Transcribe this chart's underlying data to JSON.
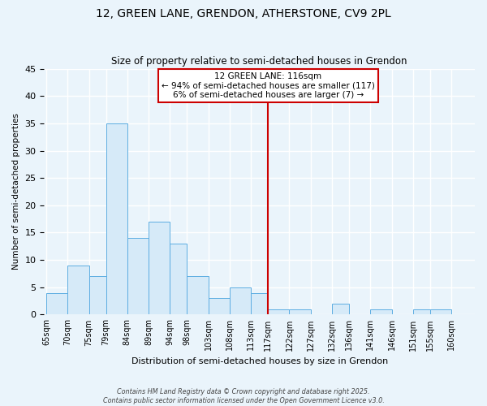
{
  "title": "12, GREEN LANE, GRENDON, ATHERSTONE, CV9 2PL",
  "subtitle": "Size of property relative to semi-detached houses in Grendon",
  "xlabel": "Distribution of semi-detached houses by size in Grendon",
  "ylabel": "Number of semi-detached properties",
  "bin_labels": [
    "65sqm",
    "70sqm",
    "75sqm",
    "79sqm",
    "84sqm",
    "89sqm",
    "94sqm",
    "98sqm",
    "103sqm",
    "108sqm",
    "113sqm",
    "117sqm",
    "122sqm",
    "127sqm",
    "132sqm",
    "136sqm",
    "141sqm",
    "146sqm",
    "151sqm",
    "155sqm",
    "160sqm"
  ],
  "bin_edges": [
    65,
    70,
    75,
    79,
    84,
    89,
    94,
    98,
    103,
    108,
    113,
    117,
    122,
    127,
    132,
    136,
    141,
    146,
    151,
    155,
    160
  ],
  "counts": [
    4,
    9,
    7,
    35,
    14,
    17,
    13,
    7,
    3,
    5,
    4,
    1,
    1,
    0,
    2,
    0,
    1,
    0,
    1,
    1
  ],
  "bar_color": "#d6eaf8",
  "bar_edge_color": "#5dade2",
  "vline_x": 117,
  "vline_color": "#cc0000",
  "annotation_title": "12 GREEN LANE: 116sqm",
  "annotation_line1": "← 94% of semi-detached houses are smaller (117)",
  "annotation_line2": "6% of semi-detached houses are larger (7) →",
  "ylim": [
    0,
    45
  ],
  "yticks": [
    0,
    5,
    10,
    15,
    20,
    25,
    30,
    35,
    40,
    45
  ],
  "background_color": "#eaf4fb",
  "grid_color": "#ffffff",
  "footer_line1": "Contains HM Land Registry data © Crown copyright and database right 2025.",
  "footer_line2": "Contains public sector information licensed under the Open Government Licence v3.0."
}
